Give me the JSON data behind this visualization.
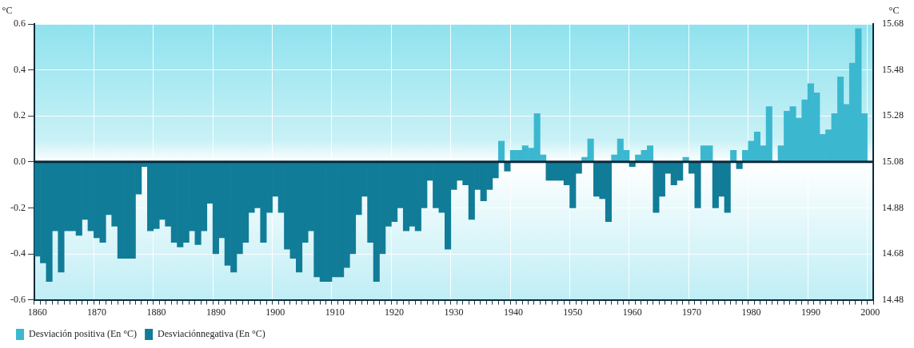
{
  "chart_data": {
    "type": "bar",
    "ylabel": "°C",
    "y2label": "°C",
    "x": [
      1860,
      1861,
      1862,
      1863,
      1864,
      1865,
      1866,
      1867,
      1868,
      1869,
      1870,
      1871,
      1872,
      1873,
      1874,
      1875,
      1876,
      1877,
      1878,
      1879,
      1880,
      1881,
      1882,
      1883,
      1884,
      1885,
      1886,
      1887,
      1888,
      1889,
      1890,
      1891,
      1892,
      1893,
      1894,
      1895,
      1896,
      1897,
      1898,
      1899,
      1900,
      1901,
      1902,
      1903,
      1904,
      1905,
      1906,
      1907,
      1908,
      1909,
      1910,
      1911,
      1912,
      1913,
      1914,
      1915,
      1916,
      1917,
      1918,
      1919,
      1920,
      1921,
      1922,
      1923,
      1924,
      1925,
      1926,
      1927,
      1928,
      1929,
      1930,
      1931,
      1932,
      1933,
      1934,
      1935,
      1936,
      1937,
      1938,
      1939,
      1940,
      1941,
      1942,
      1943,
      1944,
      1945,
      1946,
      1947,
      1948,
      1949,
      1950,
      1951,
      1952,
      1953,
      1954,
      1955,
      1956,
      1957,
      1958,
      1959,
      1960,
      1961,
      1962,
      1963,
      1964,
      1965,
      1966,
      1967,
      1968,
      1969,
      1970,
      1971,
      1972,
      1973,
      1974,
      1975,
      1976,
      1977,
      1978,
      1979,
      1980,
      1981,
      1982,
      1983,
      1984,
      1985,
      1986,
      1987,
      1988,
      1989,
      1990,
      1991,
      1992,
      1993,
      1994,
      1995,
      1996,
      1997,
      1998,
      1999
    ],
    "series": [
      {
        "name": "Desviación positiva (En °C)",
        "color": "#3bb8d0",
        "values": [
          null,
          null,
          null,
          null,
          null,
          null,
          null,
          null,
          null,
          null,
          null,
          null,
          null,
          null,
          null,
          null,
          null,
          null,
          null,
          null,
          null,
          null,
          null,
          null,
          null,
          null,
          null,
          null,
          null,
          null,
          null,
          null,
          null,
          null,
          null,
          null,
          null,
          null,
          null,
          null,
          null,
          null,
          null,
          null,
          null,
          null,
          null,
          null,
          null,
          null,
          null,
          null,
          null,
          null,
          null,
          null,
          null,
          null,
          null,
          null,
          null,
          null,
          null,
          null,
          null,
          null,
          null,
          null,
          null,
          null,
          null,
          null,
          null,
          null,
          null,
          null,
          null,
          null,
          0.09,
          null,
          0.05,
          0.05,
          0.07,
          0.06,
          0.21,
          0.03,
          null,
          null,
          null,
          null,
          null,
          null,
          0.02,
          0.1,
          null,
          null,
          null,
          0.03,
          0.1,
          0.05,
          null,
          0.03,
          0.05,
          0.07,
          null,
          null,
          null,
          null,
          null,
          0.02,
          null,
          null,
          0.07,
          0.07,
          null,
          null,
          null,
          0.05,
          null,
          0.05,
          0.09,
          0.13,
          0.07,
          0.24,
          null,
          0.07,
          0.22,
          0.24,
          0.19,
          0.27,
          0.34,
          0.3,
          0.12,
          0.14,
          0.21,
          0.37,
          0.25,
          0.43,
          0.58,
          0.21
        ]
      },
      {
        "name": "Desviaciónnegativa (En °C)",
        "color": "#117c98",
        "values": [
          -0.41,
          -0.44,
          -0.52,
          -0.3,
          -0.48,
          -0.3,
          -0.3,
          -0.32,
          -0.25,
          -0.3,
          -0.33,
          -0.35,
          -0.23,
          -0.28,
          -0.42,
          -0.42,
          -0.42,
          -0.14,
          -0.02,
          -0.3,
          -0.29,
          -0.25,
          -0.28,
          -0.35,
          -0.37,
          -0.35,
          -0.3,
          -0.36,
          -0.3,
          -0.18,
          -0.4,
          -0.33,
          -0.45,
          -0.48,
          -0.4,
          -0.35,
          -0.22,
          -0.2,
          -0.35,
          -0.22,
          -0.15,
          -0.22,
          -0.38,
          -0.42,
          -0.48,
          -0.35,
          -0.3,
          -0.5,
          -0.52,
          -0.52,
          -0.5,
          -0.5,
          -0.46,
          -0.4,
          -0.23,
          -0.15,
          -0.35,
          -0.52,
          -0.4,
          -0.28,
          -0.26,
          -0.2,
          -0.3,
          -0.28,
          -0.3,
          -0.2,
          -0.08,
          -0.2,
          -0.22,
          -0.38,
          -0.12,
          -0.08,
          -0.1,
          -0.25,
          -0.12,
          -0.17,
          -0.12,
          -0.07,
          null,
          -0.04,
          null,
          null,
          null,
          null,
          null,
          null,
          -0.08,
          -0.08,
          -0.08,
          -0.1,
          -0.2,
          -0.05,
          null,
          null,
          -0.15,
          -0.16,
          -0.26,
          null,
          null,
          null,
          -0.02,
          null,
          null,
          null,
          -0.22,
          -0.15,
          -0.05,
          -0.1,
          -0.08,
          null,
          -0.05,
          -0.2,
          null,
          null,
          -0.2,
          -0.15,
          -0.22,
          null,
          -0.03,
          null,
          null,
          null,
          null,
          null,
          null,
          null,
          null,
          null,
          null,
          null,
          null,
          null,
          null,
          null,
          null,
          null,
          null,
          null,
          null,
          null
        ]
      }
    ],
    "xlim": [
      1860,
      2000
    ],
    "xticks": [
      1860,
      {
        "value": 1861,
        "label": null
      },
      {
        "value": 1862,
        "label": null
      },
      {
        "value": 1863,
        "label": null
      },
      {
        "value": 1864,
        "label": null
      },
      {
        "value": 1865,
        "label": null
      },
      {
        "value": 1866,
        "label": null
      },
      {
        "value": 1867,
        "label": null
      },
      {
        "value": 1868,
        "label": null
      },
      {
        "value": 1869,
        "label": null
      },
      1870,
      {
        "value": 1871,
        "label": null
      },
      {
        "value": 1872,
        "label": null
      },
      {
        "value": 1873,
        "label": null
      },
      {
        "value": 1874,
        "label": null
      },
      {
        "value": 1875,
        "label": null
      },
      {
        "value": 1876,
        "label": null
      },
      {
        "value": 1877,
        "label": null
      },
      {
        "value": 1878,
        "label": null
      },
      {
        "value": 1879,
        "label": null
      },
      1880,
      {
        "value": 1881,
        "label": null
      },
      {
        "value": 1882,
        "label": null
      },
      {
        "value": 1883,
        "label": null
      },
      {
        "value": 1884,
        "label": null
      },
      {
        "value": 1885,
        "label": null
      },
      {
        "value": 1886,
        "label": null
      },
      {
        "value": 1887,
        "label": null
      },
      {
        "value": 1888,
        "label": null
      },
      {
        "value": 1889,
        "label": null
      },
      1890,
      {
        "value": 1891,
        "label": null
      },
      {
        "value": 1892,
        "label": null
      },
      {
        "value": 1893,
        "label": null
      },
      {
        "value": 1894,
        "label": null
      },
      {
        "value": 1895,
        "label": null
      },
      {
        "value": 1896,
        "label": null
      },
      {
        "value": 1897,
        "label": null
      },
      {
        "value": 1898,
        "label": null
      },
      {
        "value": 1899,
        "label": null
      },
      1900,
      {
        "value": 1901,
        "label": null
      },
      {
        "value": 1902,
        "label": null
      },
      {
        "value": 1903,
        "label": null
      },
      {
        "value": 1904,
        "label": null
      },
      {
        "value": 1905,
        "label": null
      },
      {
        "value": 1906,
        "label": null
      },
      {
        "value": 1907,
        "label": null
      },
      {
        "value": 1908,
        "label": null
      },
      {
        "value": 1909,
        "label": null
      },
      1910,
      {
        "value": 1911,
        "label": null
      },
      {
        "value": 1912,
        "label": null
      },
      {
        "value": 1913,
        "label": null
      },
      {
        "value": 1914,
        "label": null
      },
      {
        "value": 1915,
        "label": null
      },
      {
        "value": 1916,
        "label": null
      },
      {
        "value": 1917,
        "label": null
      },
      {
        "value": 1918,
        "label": null
      },
      {
        "value": 1919,
        "label": null
      },
      1920,
      {
        "value": 1921,
        "label": null
      },
      {
        "value": 1922,
        "label": null
      },
      {
        "value": 1923,
        "label": null
      },
      {
        "value": 1924,
        "label": null
      },
      {
        "value": 1925,
        "label": null
      },
      {
        "value": 1926,
        "label": null
      },
      {
        "value": 1927,
        "label": null
      },
      {
        "value": 1928,
        "label": null
      },
      {
        "value": 1929,
        "label": null
      },
      1930,
      {
        "value": 1931,
        "label": null
      },
      {
        "value": 1932,
        "label": null
      },
      {
        "value": 1933,
        "label": null
      },
      {
        "value": 1934,
        "label": null
      },
      {
        "value": 1935,
        "label": null
      },
      {
        "value": 1936,
        "label": null
      },
      {
        "value": 1937,
        "label": null
      },
      {
        "value": 1938,
        "label": null
      },
      {
        "value": 1939,
        "label": null
      },
      1940,
      {
        "value": 1941,
        "label": null
      },
      {
        "value": 1942,
        "label": null
      },
      {
        "value": 1943,
        "label": null
      },
      {
        "value": 1944,
        "label": null
      },
      {
        "value": 1945,
        "label": null
      },
      {
        "value": 1946,
        "label": null
      },
      {
        "value": 1947,
        "label": null
      },
      {
        "value": 1948,
        "label": null
      },
      {
        "value": 1949,
        "label": null
      },
      1950,
      {
        "value": 1951,
        "label": null
      },
      {
        "value": 1952,
        "label": null
      },
      {
        "value": 1953,
        "label": null
      },
      {
        "value": 1954,
        "label": null
      },
      {
        "value": 1955,
        "label": null
      },
      {
        "value": 1956,
        "label": null
      },
      {
        "value": 1957,
        "label": null
      },
      {
        "value": 1958,
        "label": null
      },
      {
        "value": 1959,
        "label": null
      },
      1960,
      {
        "value": 1961,
        "label": null
      },
      {
        "value": 1962,
        "label": null
      },
      {
        "value": 1963,
        "label": null
      },
      {
        "value": 1964,
        "label": null
      },
      {
        "value": 1965,
        "label": null
      },
      {
        "value": 1966,
        "label": null
      },
      {
        "value": 1967,
        "label": null
      },
      {
        "value": 1968,
        "label": null
      },
      {
        "value": 1969,
        "label": null
      },
      1970,
      {
        "value": 1971,
        "label": null
      },
      {
        "value": 1972,
        "label": null
      },
      {
        "value": 1973,
        "label": null
      },
      {
        "value": 1974,
        "label": null
      },
      {
        "value": 1975,
        "label": null
      },
      {
        "value": 1976,
        "label": null
      },
      {
        "value": 1977,
        "label": null
      },
      {
        "value": 1978,
        "label": null
      },
      {
        "value": 1979,
        "label": null
      },
      1980,
      {
        "value": 1981,
        "label": null
      },
      {
        "value": 1982,
        "label": null
      },
      {
        "value": 1983,
        "label": null
      },
      {
        "value": 1984,
        "label": null
      },
      {
        "value": 1985,
        "label": null
      },
      {
        "value": 1986,
        "label": null
      },
      {
        "value": 1987,
        "label": null
      },
      {
        "value": 1988,
        "label": null
      },
      {
        "value": 1989,
        "label": null
      },
      1990,
      {
        "value": 1991,
        "label": null
      },
      {
        "value": 1992,
        "label": null
      },
      {
        "value": 1993,
        "label": null
      },
      {
        "value": 1994,
        "label": null
      },
      {
        "value": 1995,
        "label": null
      },
      {
        "value": 1996,
        "label": null
      },
      {
        "value": 1997,
        "label": null
      },
      {
        "value": 1998,
        "label": null
      },
      {
        "value": 1999,
        "label": null
      },
      2000
    ],
    "ylim": [
      -0.6,
      0.6
    ],
    "yticks": [
      {
        "value": -0.6,
        "label": "-0.6"
      },
      {
        "value": -0.4,
        "label": "-0.4"
      },
      {
        "value": -0.2,
        "label": "-0.2"
      },
      {
        "value": 0,
        "label": "0.0"
      },
      0.2,
      0.4,
      0.6
    ],
    "y2lim": [
      14.48,
      15.68
    ],
    "y2ticks": [
      14.48,
      14.68,
      14.88,
      15.08,
      15.28,
      15.48,
      15.68
    ],
    "ref_lines": [
      {
        "axis": "y",
        "value": 0,
        "color": "#0b2a3a"
      }
    ],
    "grid": true,
    "legend": "bottom left"
  }
}
